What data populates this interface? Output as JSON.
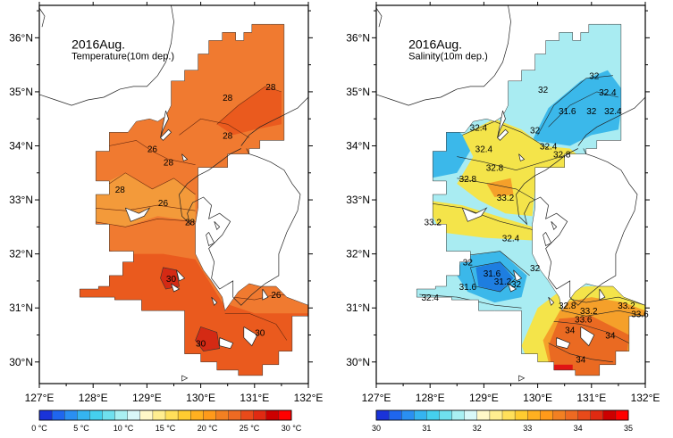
{
  "panels": [
    {
      "title": "2016Aug.",
      "subtitle": "Temperature(10m dep.)",
      "variable": "temperature",
      "lat_ticks": [
        "36°N",
        "35°N",
        "34°N",
        "33°N",
        "32°N",
        "31°N",
        "30°N"
      ],
      "lon_ticks": [
        "127°E",
        "128°E",
        "129°E",
        "130°E",
        "131°E",
        "132°E"
      ],
      "contour_labels": [
        {
          "text": "28",
          "lon": 130.5,
          "lat": 34.9
        },
        {
          "text": "28",
          "lon": 131.3,
          "lat": 35.1
        },
        {
          "text": "28",
          "lon": 130.5,
          "lat": 34.2
        },
        {
          "text": "26",
          "lon": 129.1,
          "lat": 33.95
        },
        {
          "text": "28",
          "lon": 129.4,
          "lat": 33.7
        },
        {
          "text": "28",
          "lon": 128.5,
          "lat": 33.2
        },
        {
          "text": "26",
          "lon": 129.3,
          "lat": 32.95
        },
        {
          "text": "28",
          "lon": 129.8,
          "lat": 32.6
        },
        {
          "text": "30",
          "lon": 129.45,
          "lat": 31.55
        },
        {
          "text": "26",
          "lon": 131.4,
          "lat": 31.25
        },
        {
          "text": "30",
          "lon": 130.0,
          "lat": 30.35
        },
        {
          "text": "30",
          "lon": 131.1,
          "lat": 30.55
        }
      ],
      "colorbar": {
        "labels": [
          "0 °C",
          "5 °C",
          "10 °C",
          "15 °C",
          "20 °C",
          "25 °C",
          "30 °C"
        ],
        "colors": [
          "#1a33d9",
          "#1f66ee",
          "#2a8ff2",
          "#35b4f0",
          "#45d0ee",
          "#6fe0ee",
          "#a9f0f2",
          "#d9f8f8",
          "#fff8c8",
          "#ffee90",
          "#ffe05a",
          "#ffcc30",
          "#ffb020",
          "#ff9a1a",
          "#f28022",
          "#ee6a22",
          "#e84a1a",
          "#e02a12",
          "#cc0000",
          "#ff0000"
        ]
      }
    },
    {
      "title": "2016Aug.",
      "subtitle": "Salinity(10m dep.)",
      "variable": "salinity",
      "lat_ticks": [
        "36°N",
        "35°N",
        "34°N",
        "33°N",
        "32°N",
        "31°N",
        "30°N"
      ],
      "lon_ticks": [
        "127°E",
        "128°E",
        "129°E",
        "130°E",
        "131°E",
        "132°E"
      ],
      "contour_labels": [
        {
          "text": "32",
          "lon": 131.05,
          "lat": 35.3
        },
        {
          "text": "32",
          "lon": 130.1,
          "lat": 35.05
        },
        {
          "text": "32.4",
          "lon": 131.3,
          "lat": 35.0
        },
        {
          "text": "31.6",
          "lon": 130.55,
          "lat": 34.65
        },
        {
          "text": "32",
          "lon": 131.0,
          "lat": 34.65
        },
        {
          "text": "32.4",
          "lon": 131.4,
          "lat": 34.65
        },
        {
          "text": "32.4",
          "lon": 128.9,
          "lat": 34.35
        },
        {
          "text": "32",
          "lon": 129.95,
          "lat": 34.3
        },
        {
          "text": "32.4",
          "lon": 130.2,
          "lat": 34.0
        },
        {
          "text": "32.8",
          "lon": 130.45,
          "lat": 33.85
        },
        {
          "text": "32.4",
          "lon": 129.0,
          "lat": 33.95
        },
        {
          "text": "32.8",
          "lon": 129.2,
          "lat": 33.6
        },
        {
          "text": "32.8",
          "lon": 128.7,
          "lat": 33.4
        },
        {
          "text": "33.2",
          "lon": 129.4,
          "lat": 33.05
        },
        {
          "text": "33.2",
          "lon": 128.05,
          "lat": 32.6
        },
        {
          "text": "32.4",
          "lon": 129.5,
          "lat": 32.3
        },
        {
          "text": "32",
          "lon": 128.7,
          "lat": 31.85
        },
        {
          "text": "31.6",
          "lon": 129.15,
          "lat": 31.65
        },
        {
          "text": "31.2",
          "lon": 129.35,
          "lat": 31.5
        },
        {
          "text": "31.6",
          "lon": 128.7,
          "lat": 31.4
        },
        {
          "text": "32",
          "lon": 129.6,
          "lat": 31.45
        },
        {
          "text": "32",
          "lon": 129.95,
          "lat": 31.75
        },
        {
          "text": "32.4",
          "lon": 128.0,
          "lat": 31.2
        },
        {
          "text": "32.8",
          "lon": 130.55,
          "lat": 31.05
        },
        {
          "text": "33.2",
          "lon": 130.95,
          "lat": 30.95
        },
        {
          "text": "33.6",
          "lon": 130.85,
          "lat": 30.8
        },
        {
          "text": "33.2",
          "lon": 131.65,
          "lat": 31.05
        },
        {
          "text": "33.6",
          "lon": 131.9,
          "lat": 30.9
        },
        {
          "text": "34",
          "lon": 130.6,
          "lat": 30.6
        },
        {
          "text": "34",
          "lon": 131.35,
          "lat": 30.5
        },
        {
          "text": "34",
          "lon": 130.8,
          "lat": 30.05
        }
      ],
      "colorbar": {
        "labels": [
          "30",
          "31",
          "32",
          "33",
          "34",
          "35"
        ],
        "colors": [
          "#1a33d9",
          "#1f66ee",
          "#2a8ff2",
          "#35b4f0",
          "#45d0ee",
          "#6fe0ee",
          "#a9f0f2",
          "#d9f8f8",
          "#fff8c8",
          "#ffee90",
          "#ffe05a",
          "#ffcc30",
          "#ffb020",
          "#ff9a1a",
          "#f28022",
          "#ee6a22",
          "#e84a1a",
          "#e02a12",
          "#cc0000",
          "#ff0000"
        ]
      }
    }
  ],
  "palette": {
    "temp_base": "#f07a30",
    "temp_warm": "#ea5a1e",
    "temp_hot": "#d42a14",
    "temp_cool": "#f39a3a",
    "sal_low": "#3bb8ea",
    "sal_mid": "#a9ecf2",
    "sal_yellow": "#f4e44a",
    "sal_orange": "#f5a02a",
    "sal_high": "#ea6a22",
    "sal_red": "#e01414",
    "land_line": "#222222"
  }
}
